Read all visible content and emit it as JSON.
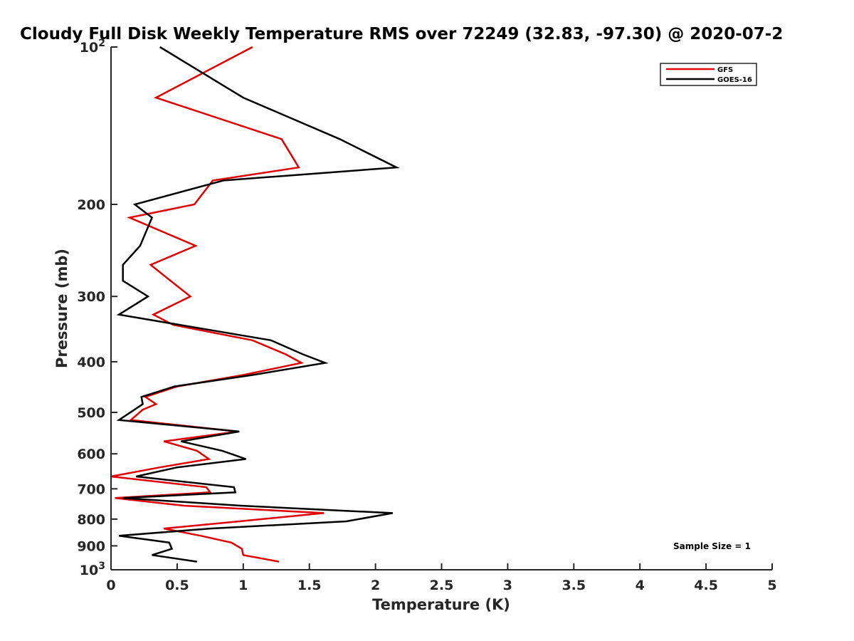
{
  "chart_data": {
    "type": "line",
    "title": "Cloudy Full Disk Weekly Temperature RMS over 72249 (32.83, -97.30) @ 2020-07-2",
    "xlabel": "Temperature (K)",
    "ylabel": "Pressure (mb)",
    "xlim": [
      0,
      5
    ],
    "ylim": [
      1000,
      100
    ],
    "y_scale": "log",
    "y_reversed": true,
    "x_ticks": [
      "0",
      "0.5",
      "1",
      "1.5",
      "2",
      "2.5",
      "3",
      "3.5",
      "4",
      "4.5",
      "5"
    ],
    "y_ticks": [
      {
        "value": 100,
        "base": "10",
        "exp": "2"
      },
      {
        "value": 200,
        "label": "200"
      },
      {
        "value": 300,
        "label": "300"
      },
      {
        "value": 400,
        "label": "400"
      },
      {
        "value": 500,
        "label": "500"
      },
      {
        "value": 600,
        "label": "600"
      },
      {
        "value": 700,
        "label": "700"
      },
      {
        "value": 800,
        "label": "800"
      },
      {
        "value": 900,
        "label": "900"
      },
      {
        "value": 1000,
        "base": "10",
        "exp": "3"
      }
    ],
    "legend_position": "top-right",
    "annotation": "Sample Size = 1",
    "series": [
      {
        "name": "GFS",
        "color": "#e00000",
        "points": [
          [
            1.07,
            100
          ],
          [
            0.34,
            125
          ],
          [
            1.29,
            150
          ],
          [
            1.42,
            170
          ],
          [
            0.77,
            180
          ],
          [
            0.63,
            200
          ],
          [
            0.14,
            212
          ],
          [
            0.64,
            240
          ],
          [
            0.3,
            261
          ],
          [
            0.45,
            280
          ],
          [
            0.6,
            300
          ],
          [
            0.32,
            325
          ],
          [
            0.47,
            340
          ],
          [
            1.07,
            364
          ],
          [
            1.32,
            387
          ],
          [
            1.44,
            402
          ],
          [
            1.0,
            424
          ],
          [
            0.5,
            446
          ],
          [
            0.26,
            467
          ],
          [
            0.34,
            482
          ],
          [
            0.24,
            494
          ],
          [
            0.15,
            517
          ],
          [
            0.96,
            544
          ],
          [
            0.4,
            568
          ],
          [
            0.65,
            592
          ],
          [
            0.74,
            614
          ],
          [
            0.37,
            637
          ],
          [
            0.0,
            663
          ],
          [
            0.72,
            695
          ],
          [
            0.75,
            711
          ],
          [
            0.03,
            729
          ],
          [
            0.55,
            754
          ],
          [
            1.61,
            779
          ],
          [
            0.97,
            808
          ],
          [
            0.4,
            834
          ],
          [
            0.68,
            861
          ],
          [
            0.91,
            887
          ],
          [
            0.99,
            912
          ],
          [
            1.0,
            937
          ],
          [
            1.27,
            965
          ]
        ]
      },
      {
        "name": "GOES-16",
        "color": "#000000",
        "points": [
          [
            0.37,
            100
          ],
          [
            1.0,
            125
          ],
          [
            1.73,
            150
          ],
          [
            2.16,
            170
          ],
          [
            0.85,
            180
          ],
          [
            0.18,
            200
          ],
          [
            0.31,
            212
          ],
          [
            0.22,
            240
          ],
          [
            0.09,
            261
          ],
          [
            0.09,
            280
          ],
          [
            0.28,
            300
          ],
          [
            0.06,
            325
          ],
          [
            1.21,
            364
          ],
          [
            1.45,
            387
          ],
          [
            1.62,
            402
          ],
          [
            1.07,
            424
          ],
          [
            0.48,
            446
          ],
          [
            0.23,
            467
          ],
          [
            0.24,
            482
          ],
          [
            0.06,
            517
          ],
          [
            0.97,
            544
          ],
          [
            0.53,
            568
          ],
          [
            0.84,
            592
          ],
          [
            1.02,
            614
          ],
          [
            0.5,
            637
          ],
          [
            0.19,
            663
          ],
          [
            0.93,
            695
          ],
          [
            0.94,
            711
          ],
          [
            0.09,
            729
          ],
          [
            0.98,
            754
          ],
          [
            2.13,
            779
          ],
          [
            1.78,
            808
          ],
          [
            0.75,
            834
          ],
          [
            0.06,
            861
          ],
          [
            0.44,
            887
          ],
          [
            0.46,
            912
          ],
          [
            0.31,
            937
          ],
          [
            0.65,
            965
          ]
        ]
      }
    ]
  }
}
